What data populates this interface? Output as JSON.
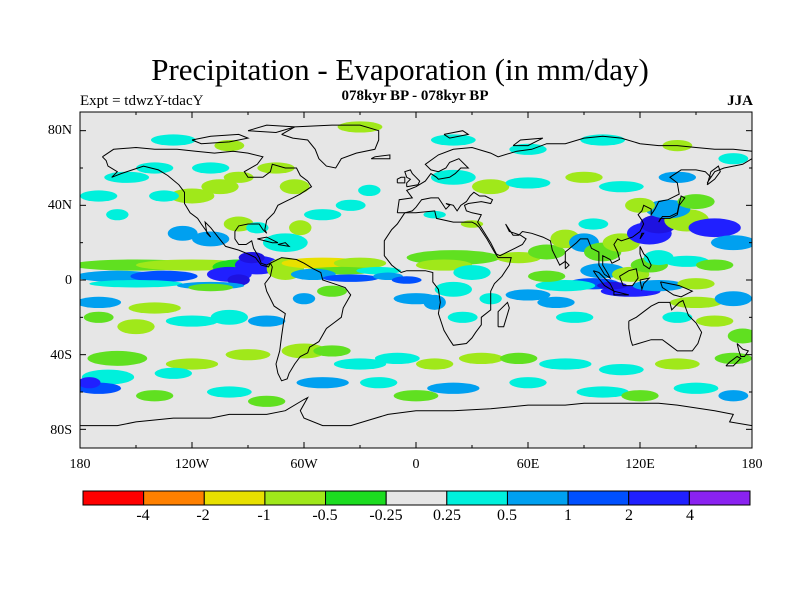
{
  "title": "Precipitation - Evaporation (in mm/day)",
  "subtitle": "078kyr BP - 078kyr BP",
  "left_label": "Expt = tdwzY-tdacY",
  "right_label": "JJA",
  "lat_ticks": [
    "80N",
    "40N",
    "0",
    "40S",
    "80S"
  ],
  "lon_ticks": [
    "180",
    "120W",
    "60W",
    "0",
    "60E",
    "120E",
    "180"
  ],
  "colorbar": {
    "colors": [
      "#ff0000",
      "#ff8000",
      "#e8e000",
      "#a0e81a",
      "#60e020",
      "#1cdc20",
      "#e6e6e6",
      "#00f0dc",
      "#00a0f0",
      "#0050ff",
      "#2020ff",
      "#1e12e0",
      "#8a22f0"
    ],
    "labels": [
      "-4",
      "-2",
      "-1",
      "-0.5",
      "-0.25",
      "0.25",
      "0.5",
      "1",
      "2",
      "4"
    ]
  },
  "map": {
    "projection": "cylindrical equidistant",
    "lon_range": [
      -180,
      180
    ],
    "lat_range": [
      -90,
      90
    ],
    "ocean_fill": "#e6e6e6"
  }
}
